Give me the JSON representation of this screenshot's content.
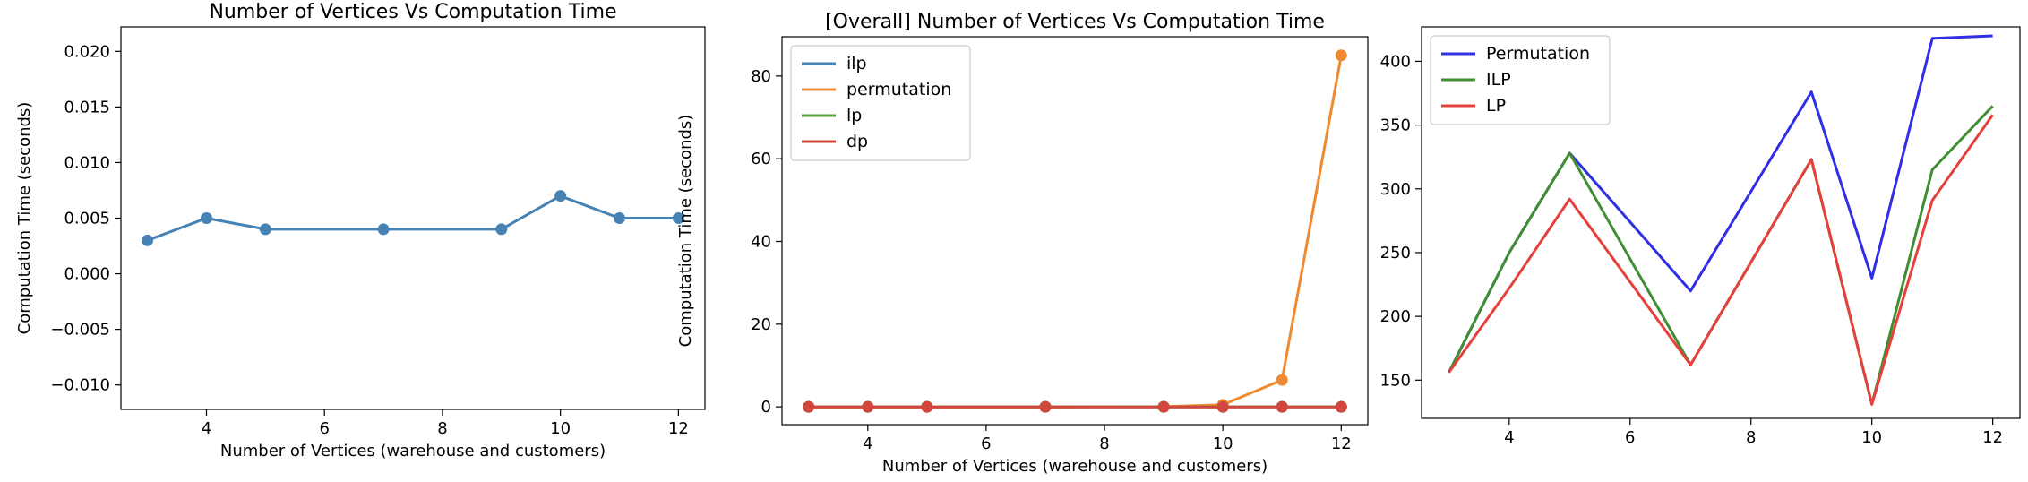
{
  "chart_data": [
    {
      "type": "line",
      "title": "Number of Vertices Vs Computation Time",
      "xlabel": "Number of Vertices (warehouse and customers)",
      "ylabel": "Computation Time (seconds)",
      "xlim": [
        2.55,
        12.45
      ],
      "ylim": [
        -0.0122,
        0.0222
      ],
      "xticks": [
        4,
        6,
        8,
        10,
        12
      ],
      "yticks": [
        -0.01,
        -0.005,
        0.0,
        0.005,
        0.01,
        0.015,
        0.02
      ],
      "ytick_labels": [
        "−0.010",
        "−0.005",
        "0.000",
        "0.005",
        "0.010",
        "0.015",
        "0.020"
      ],
      "markers": true,
      "legend": null,
      "series": [
        {
          "color": "#4682b4",
          "x": [
            3,
            4,
            5,
            7,
            9,
            10,
            11,
            12
          ],
          "y": [
            0.003,
            0.005,
            0.004,
            0.004,
            0.004,
            0.007,
            0.005,
            0.005
          ]
        }
      ]
    },
    {
      "type": "line",
      "title": "[Overall] Number of Vertices Vs Computation Time",
      "xlabel": "Number of Vertices (warehouse and customers)",
      "ylabel": "Computation Time (seconds)",
      "xlim": [
        2.55,
        12.45
      ],
      "ylim": [
        -4.3,
        89.5
      ],
      "xticks": [
        4,
        6,
        8,
        10,
        12
      ],
      "yticks": [
        0,
        20,
        40,
        60,
        80
      ],
      "markers": true,
      "legend": "top-left",
      "series": [
        {
          "name": "ilp",
          "color": "#4682b4",
          "x": [
            3,
            4,
            5,
            7,
            9,
            10,
            11,
            12
          ],
          "y": [
            0.003,
            0.005,
            0.004,
            0.004,
            0.004,
            0.007,
            0.005,
            0.005
          ]
        },
        {
          "name": "permutation",
          "color": "#ef8a31",
          "x": [
            3,
            4,
            5,
            7,
            9,
            10,
            11,
            12
          ],
          "y": [
            0.0,
            0.0,
            0.0,
            0.0,
            0.05,
            0.5,
            6.5,
            85.0
          ]
        },
        {
          "name": "lp",
          "color": "#5ca340",
          "x": [
            3,
            4,
            5,
            7,
            9,
            10,
            11,
            12
          ],
          "y": [
            0.003,
            0.004,
            0.004,
            0.004,
            0.004,
            0.006,
            0.005,
            0.005
          ]
        },
        {
          "name": "dp",
          "color": "#d2473d",
          "x": [
            3,
            4,
            5,
            7,
            9,
            10,
            11,
            12
          ],
          "y": [
            0.0,
            0.0,
            0.0,
            0.0,
            0.0,
            0.0,
            0.0,
            0.0
          ]
        }
      ]
    },
    {
      "type": "line",
      "title": "",
      "xlabel": "",
      "ylabel": "",
      "xlim": [
        2.55,
        12.45
      ],
      "ylim": [
        120,
        427
      ],
      "xticks": [
        4,
        6,
        8,
        10,
        12
      ],
      "yticks": [
        150,
        200,
        250,
        300,
        350,
        400
      ],
      "markers": false,
      "legend": "top-left",
      "series": [
        {
          "name": "Permutation",
          "color": "#2f2fe6",
          "x": [
            3,
            4,
            5,
            7,
            9,
            10,
            11,
            12
          ],
          "y": [
            156,
            250,
            328,
            220,
            376,
            230,
            418,
            420
          ]
        },
        {
          "name": "ILP",
          "color": "#3f8f32",
          "x": [
            3,
            4,
            5,
            7,
            9,
            10,
            11,
            12
          ],
          "y": [
            156,
            250,
            328,
            162,
            323,
            131,
            315,
            365
          ]
        },
        {
          "name": "LP",
          "color": "#e6403c",
          "x": [
            3,
            4,
            5,
            7,
            9,
            10,
            11,
            12
          ],
          "y": [
            156,
            222,
            292,
            162,
            323,
            131,
            291,
            358
          ]
        }
      ]
    }
  ]
}
